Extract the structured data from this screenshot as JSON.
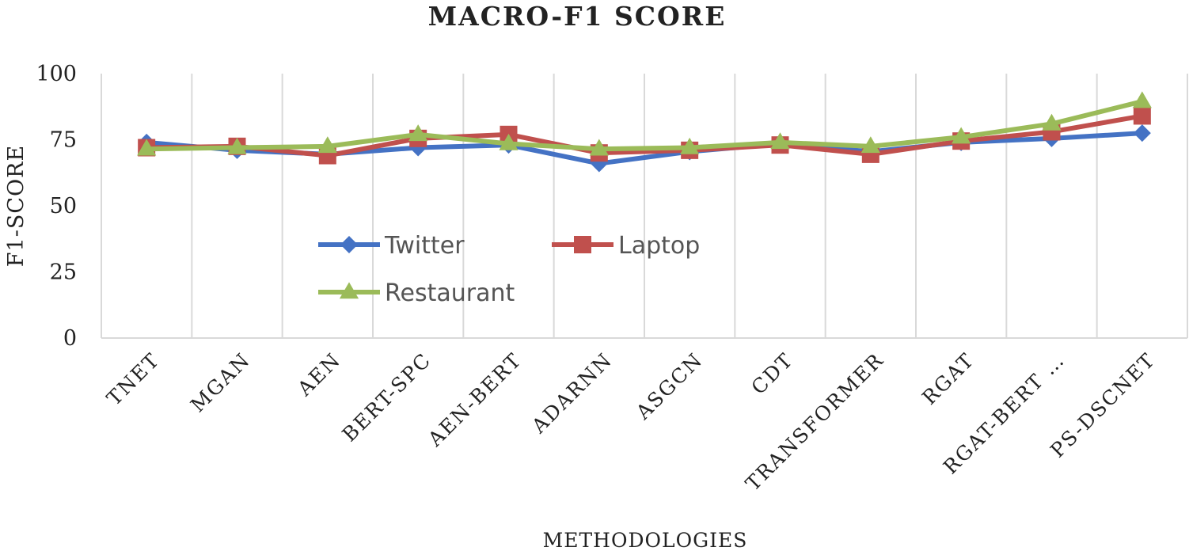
{
  "chart_data": {
    "type": "line",
    "title": "MACRO-F1 SCORE",
    "xlabel": "METHODOLOGIES",
    "ylabel": "F1-SCORE",
    "categories": [
      "TNET",
      "MGAN",
      "AEN",
      "BERT-SPC",
      "AEN-BERT",
      "ADARNN",
      "ASGCN",
      "CDT",
      "TRANSFORMER",
      "RGAT",
      "RGAT-BERT …",
      "PS-DSCNET"
    ],
    "ylim": [
      0,
      100
    ],
    "yticks": [
      0,
      25,
      50,
      75,
      100
    ],
    "grid": "vertical",
    "legend_position": "inside-center-left",
    "series": [
      {
        "name": "Twitter",
        "color": "#4472c4",
        "marker": "diamond",
        "values": [
          74.0,
          71.0,
          69.5,
          72.0,
          73.0,
          66.0,
          70.5,
          73.5,
          70.5,
          74.0,
          75.5,
          77.5
        ]
      },
      {
        "name": "Laptop",
        "color": "#c0504d",
        "marker": "square",
        "values": [
          72.0,
          72.5,
          69.0,
          75.5,
          77.0,
          70.0,
          71.0,
          73.0,
          69.5,
          74.5,
          78.0,
          84.0
        ]
      },
      {
        "name": "Restaurant",
        "color": "#9bbb59",
        "marker": "triangle",
        "values": [
          71.5,
          72.0,
          72.5,
          77.0,
          73.5,
          71.5,
          72.0,
          74.0,
          72.5,
          76.0,
          81.0,
          89.5
        ]
      }
    ]
  }
}
